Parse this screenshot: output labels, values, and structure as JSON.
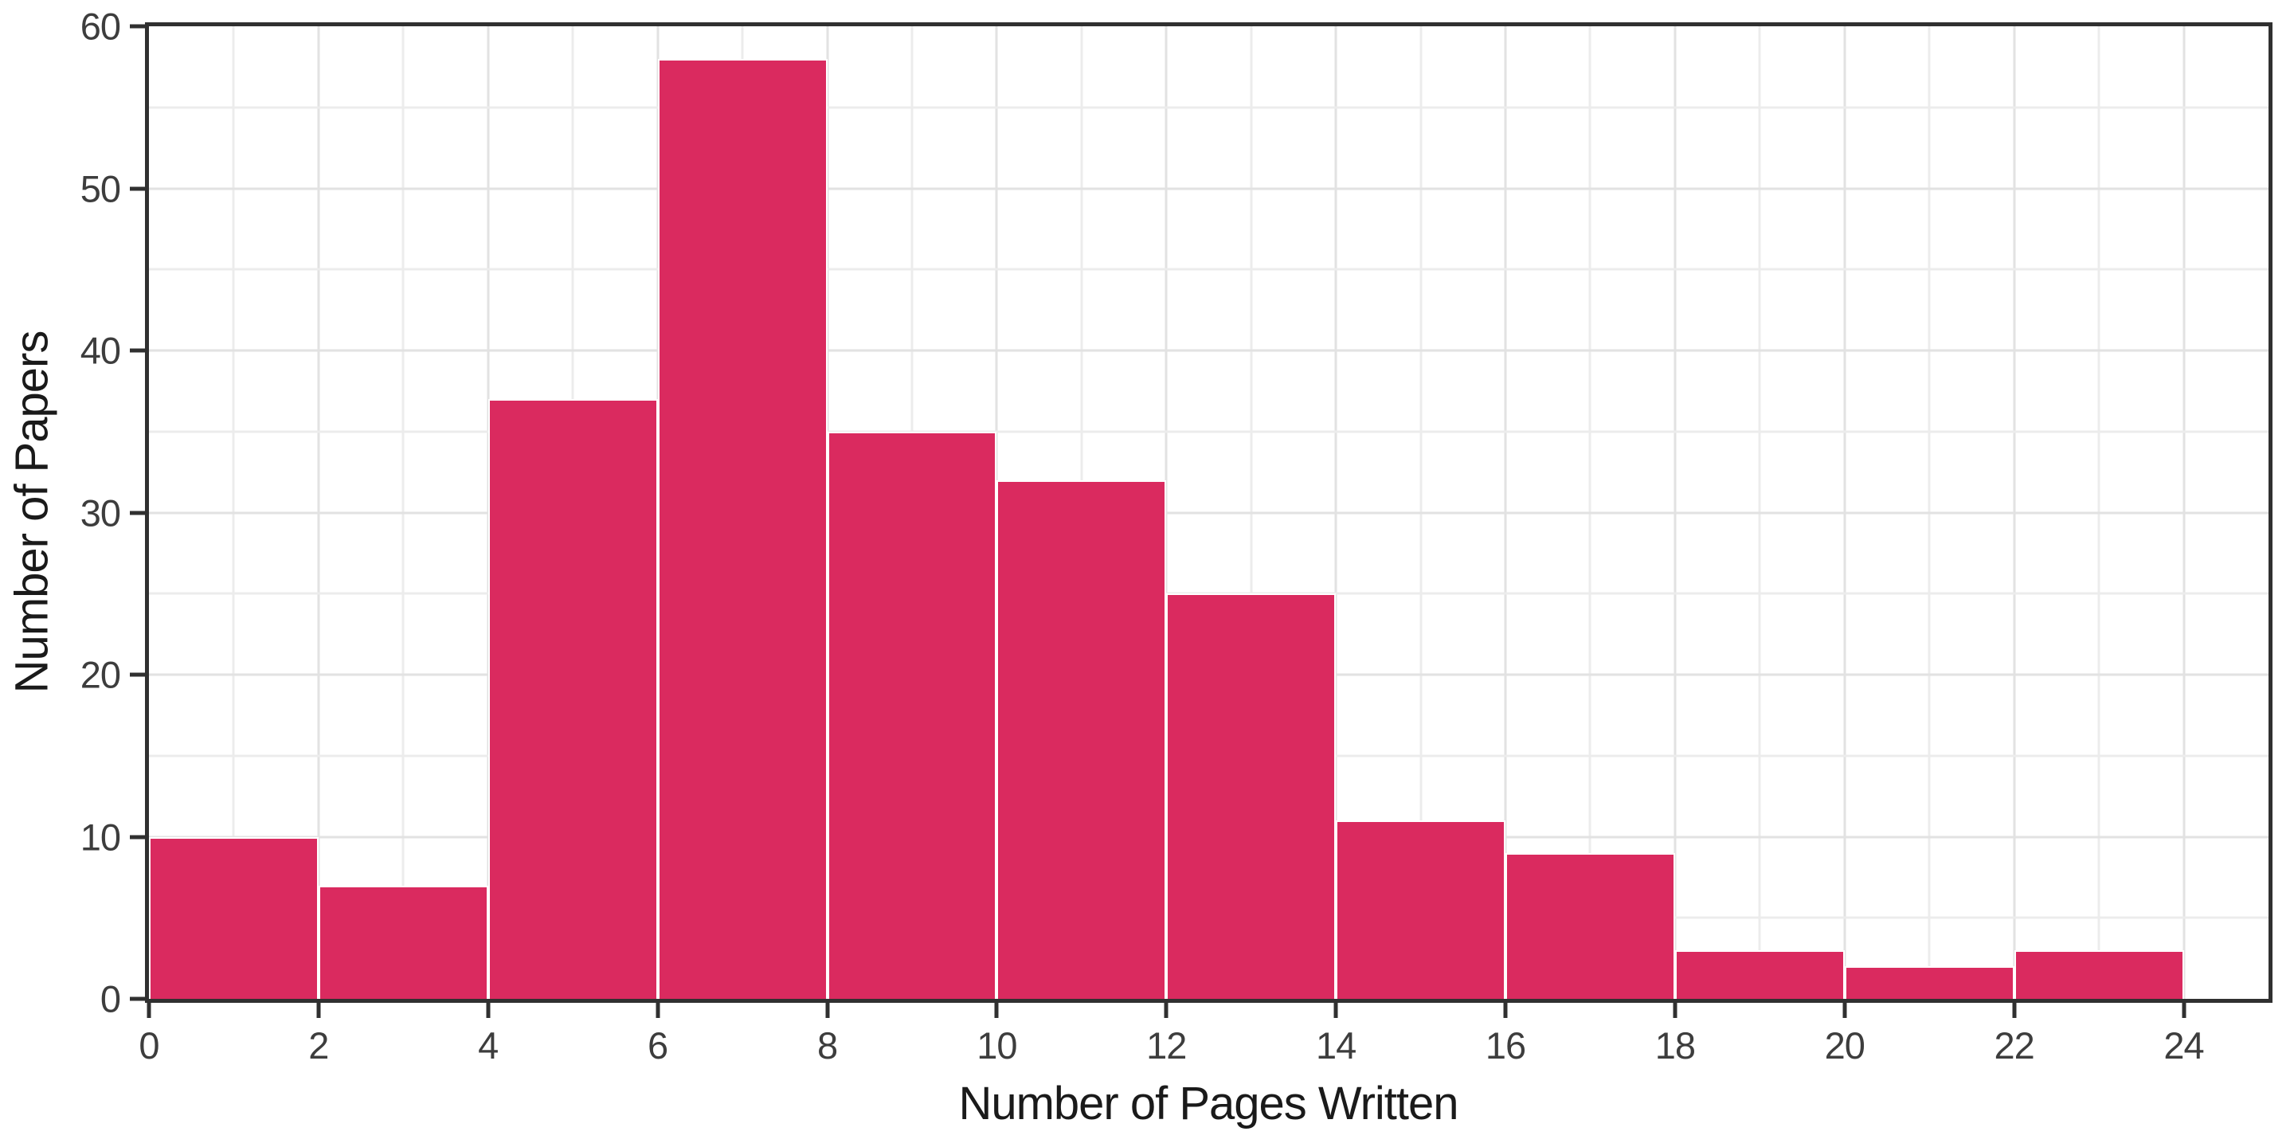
{
  "figure": {
    "background": "#ffffff"
  },
  "chart_data": {
    "type": "bar",
    "subtype": "histogram",
    "title": "",
    "xlabel": "Number of Pages Written",
    "ylabel": "Number of Papers",
    "bin_width": 2,
    "bin_edges": [
      0,
      2,
      4,
      6,
      8,
      10,
      12,
      14,
      16,
      18,
      20,
      22,
      24
    ],
    "values": [
      10,
      7,
      37,
      58,
      35,
      32,
      25,
      11,
      9,
      3,
      2,
      3
    ],
    "categories": [
      "0-2",
      "2-4",
      "4-6",
      "6-8",
      "8-10",
      "10-12",
      "12-14",
      "14-16",
      "16-18",
      "18-20",
      "20-22",
      "22-24"
    ],
    "xlim": [
      0,
      25
    ],
    "ylim": [
      0,
      60
    ],
    "x_ticks": [
      0,
      2,
      4,
      6,
      8,
      10,
      12,
      14,
      16,
      18,
      20,
      22,
      24
    ],
    "y_ticks": [
      0,
      10,
      20,
      30,
      40,
      50,
      60
    ],
    "grid": {
      "enabled": true,
      "x_minor_step": 1,
      "x_major_step": 2,
      "y_minor_step": 5,
      "y_major_step": 10
    },
    "legend": "none",
    "colors": {
      "bar_fill": "#da2a5f",
      "bar_stroke": "#ffffff",
      "spine": "#303030",
      "grid_major": "#e2e2e2",
      "grid_minor": "#ececec",
      "tick_text": "#3d3d3d",
      "title_text": "#1a1a1a",
      "background": "#ffffff"
    }
  }
}
